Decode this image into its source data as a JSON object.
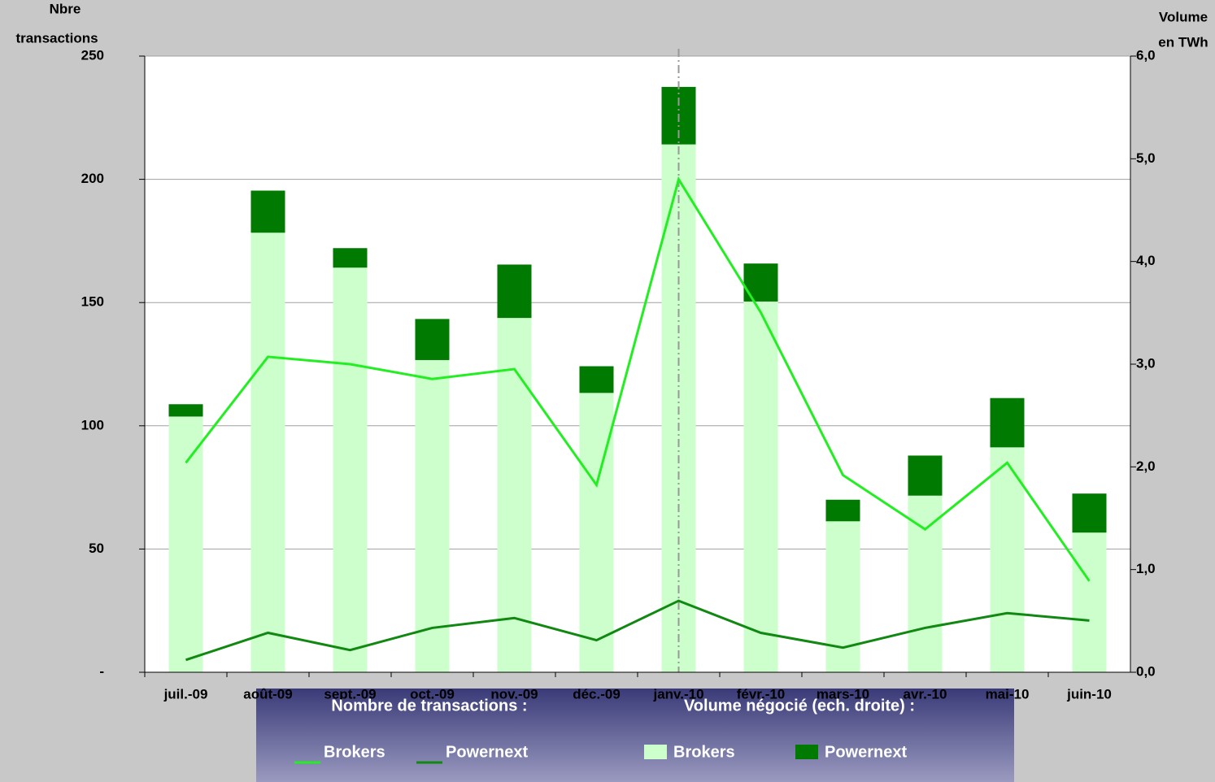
{
  "chart_data": {
    "type": "bar",
    "y_label": [
      "Nbre",
      "transactions"
    ],
    "y2_label": [
      "Volume",
      "en TWh"
    ],
    "categories": [
      "juil.-09",
      "août-09",
      "sept.-09",
      "oct.-09",
      "nov.-09",
      "déc.-09",
      "janv.-10",
      "févr.-10",
      "mars-10",
      "avr.-10",
      "mai-10",
      "juin-10"
    ],
    "series": [
      {
        "name": "Brokers",
        "type": "line",
        "axis": "y",
        "color": "#22ee22",
        "values": [
          85,
          128,
          125,
          119,
          123,
          76,
          200,
          146,
          80,
          58,
          85,
          37
        ]
      },
      {
        "name": "Powernext",
        "type": "line",
        "axis": "y",
        "color": "#118811",
        "values": [
          5,
          16,
          9,
          18,
          22,
          13,
          29,
          16,
          10,
          18,
          24,
          21
        ]
      },
      {
        "name": "Brokers",
        "type": "bar",
        "axis": "y2",
        "color": "#ccffcc",
        "values": [
          2.49,
          4.28,
          3.94,
          3.04,
          3.45,
          2.72,
          5.14,
          3.61,
          1.47,
          1.72,
          2.19,
          1.36
        ]
      },
      {
        "name": "Powernext",
        "type": "bar",
        "axis": "y2",
        "color": "#007a00",
        "values": [
          0.12,
          0.41,
          0.19,
          0.4,
          0.52,
          0.26,
          0.56,
          0.37,
          0.21,
          0.39,
          0.48,
          0.38
        ]
      }
    ],
    "legend_groups": [
      "Nombre de transactions :",
      "Volume négocié (ech. droite) :"
    ],
    "vline_at": "janv.-10",
    "ylim": [
      0,
      250
    ],
    "yticks": [
      {
        "value": 0,
        "label": "-"
      },
      50,
      100,
      150,
      200,
      250
    ],
    "y2lim": [
      0,
      6
    ],
    "y2ticks": [
      {
        "value": 0,
        "label": "0,0"
      },
      {
        "value": 1,
        "label": "1,0"
      },
      {
        "value": 2,
        "label": "2,0"
      },
      {
        "value": 3,
        "label": "3,0"
      },
      {
        "value": 4,
        "label": "4,0"
      },
      {
        "value": 5,
        "label": "5,0"
      },
      {
        "value": 6,
        "label": "6,0"
      }
    ],
    "grid": true
  }
}
